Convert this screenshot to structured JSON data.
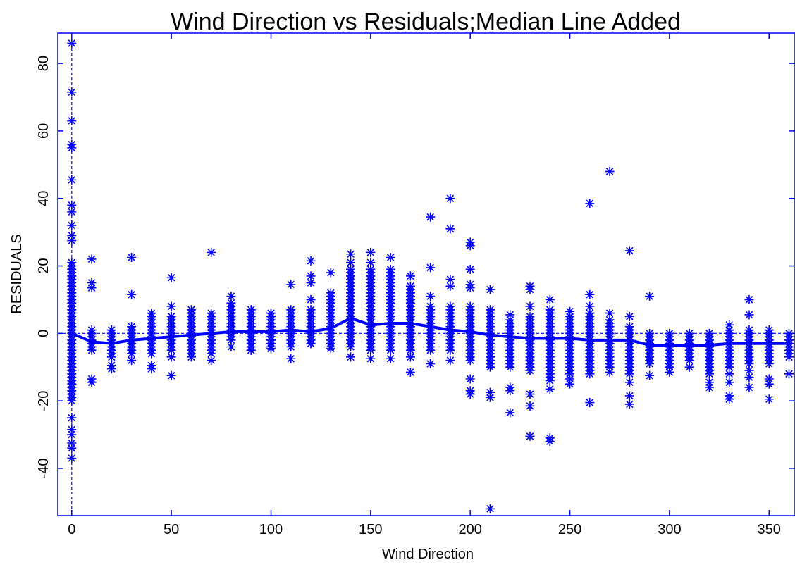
{
  "chart_data": {
    "type": "scatter",
    "title": "Wind Direction vs Residuals;Median Line Added",
    "xlabel": "Wind Direction",
    "ylabel": "RESIDUALS",
    "xlim": [
      -7,
      363
    ],
    "ylim": [
      -54,
      89
    ],
    "xticks": [
      0,
      50,
      100,
      150,
      200,
      250,
      300,
      350
    ],
    "yticks": [
      -40,
      -20,
      0,
      20,
      40,
      60,
      80
    ],
    "xtick_labels": [
      "0",
      "50",
      "100",
      "150",
      "200",
      "250",
      "300",
      "350"
    ],
    "ytick_labels": [
      "-40",
      "-20",
      "0",
      "20",
      "40",
      "60",
      "80"
    ],
    "grid": false,
    "reference_lines": {
      "horizontal_y": 0,
      "vertical_x": 0
    },
    "marker": "asterisk",
    "color": "#0000ff",
    "series": [
      {
        "type": "scatter",
        "points": [
          [
            0,
            86
          ],
          [
            0,
            71.5
          ],
          [
            0,
            63
          ],
          [
            0,
            56
          ],
          [
            0,
            55
          ],
          [
            0,
            45.5
          ],
          [
            0,
            38
          ],
          [
            0,
            36
          ],
          [
            0,
            32
          ],
          [
            0,
            29
          ],
          [
            0,
            27.5
          ],
          [
            0,
            -25
          ],
          [
            0,
            -28.5
          ],
          [
            0,
            -30
          ],
          [
            0,
            -32.5
          ],
          [
            0,
            -34
          ],
          [
            0,
            -37
          ],
          [
            10,
            22
          ],
          [
            10,
            15
          ],
          [
            10,
            13.5
          ],
          [
            10,
            -13.5
          ],
          [
            10,
            -14.5
          ],
          [
            20,
            -9.5
          ],
          [
            20,
            -10.5
          ],
          [
            30,
            22.5
          ],
          [
            30,
            11.5
          ],
          [
            30,
            -8
          ],
          [
            40,
            -9.5
          ],
          [
            40,
            -10.5
          ],
          [
            50,
            16.5
          ],
          [
            50,
            8
          ],
          [
            50,
            -7
          ],
          [
            50,
            -12.5
          ],
          [
            60,
            -7
          ],
          [
            70,
            24
          ],
          [
            70,
            -8
          ],
          [
            80,
            11
          ],
          [
            80,
            -4
          ],
          [
            90,
            -5
          ],
          [
            100,
            -4.5
          ],
          [
            110,
            14.5
          ],
          [
            110,
            -7.5
          ],
          [
            120,
            21.5
          ],
          [
            120,
            17
          ],
          [
            120,
            15
          ],
          [
            120,
            10
          ],
          [
            120,
            -3
          ],
          [
            130,
            18
          ],
          [
            130,
            -4.5
          ],
          [
            140,
            23.5
          ],
          [
            140,
            21
          ],
          [
            140,
            -7
          ],
          [
            150,
            24
          ],
          [
            150,
            21
          ],
          [
            150,
            -5
          ],
          [
            150,
            -7.5
          ],
          [
            160,
            22.5
          ],
          [
            160,
            -7.5
          ],
          [
            170,
            17
          ],
          [
            170,
            -7
          ],
          [
            170,
            -11.5
          ],
          [
            180,
            34.5
          ],
          [
            180,
            19.5
          ],
          [
            180,
            11
          ],
          [
            180,
            -9
          ],
          [
            190,
            40
          ],
          [
            190,
            31
          ],
          [
            190,
            16
          ],
          [
            190,
            14
          ],
          [
            190,
            -8
          ],
          [
            200,
            27
          ],
          [
            200,
            26
          ],
          [
            200,
            19
          ],
          [
            200,
            14.5
          ],
          [
            200,
            13.5
          ],
          [
            200,
            -13.5
          ],
          [
            200,
            -17
          ],
          [
            200,
            -18
          ],
          [
            210,
            13
          ],
          [
            210,
            -9
          ],
          [
            210,
            -10
          ],
          [
            210,
            -17.5
          ],
          [
            210,
            -19
          ],
          [
            210,
            -52
          ],
          [
            220,
            5.5
          ],
          [
            220,
            -10
          ],
          [
            220,
            -16
          ],
          [
            220,
            -17
          ],
          [
            220,
            -23.5
          ],
          [
            230,
            14
          ],
          [
            230,
            13
          ],
          [
            230,
            8
          ],
          [
            230,
            -18
          ],
          [
            230,
            -21.5
          ],
          [
            230,
            -30.5
          ],
          [
            240,
            10
          ],
          [
            240,
            -16.5
          ],
          [
            240,
            -31
          ],
          [
            240,
            -32
          ],
          [
            250,
            6.5
          ],
          [
            250,
            -13.5
          ],
          [
            250,
            -15
          ],
          [
            260,
            38.5
          ],
          [
            260,
            11.5
          ],
          [
            260,
            8
          ],
          [
            260,
            -12
          ],
          [
            260,
            -20.5
          ],
          [
            270,
            48
          ],
          [
            270,
            6
          ],
          [
            270,
            -11.5
          ],
          [
            280,
            24.5
          ],
          [
            280,
            5
          ],
          [
            280,
            -14.5
          ],
          [
            280,
            -18.5
          ],
          [
            280,
            -21
          ],
          [
            290,
            11
          ],
          [
            290,
            -12.5
          ],
          [
            300,
            -11.5
          ],
          [
            310,
            -10
          ],
          [
            320,
            -14.5
          ],
          [
            320,
            -16
          ],
          [
            330,
            2.5
          ],
          [
            330,
            -12
          ],
          [
            330,
            -14.5
          ],
          [
            330,
            -18.5
          ],
          [
            330,
            -19.5
          ],
          [
            340,
            10
          ],
          [
            340,
            5.5
          ],
          [
            340,
            -11
          ],
          [
            340,
            -13
          ],
          [
            340,
            -16
          ],
          [
            350,
            -13.5
          ],
          [
            350,
            -15
          ],
          [
            350,
            -19.5
          ],
          [
            360,
            -12
          ]
        ],
        "bands": [
          {
            "x": 0,
            "min": -20,
            "max": 21
          },
          {
            "x": 10,
            "min": -5,
            "max": 1
          },
          {
            "x": 20,
            "min": -7,
            "max": 1
          },
          {
            "x": 30,
            "min": -6,
            "max": 2
          },
          {
            "x": 40,
            "min": -6,
            "max": 6
          },
          {
            "x": 50,
            "min": -5,
            "max": 5
          },
          {
            "x": 60,
            "min": -6,
            "max": 7
          },
          {
            "x": 70,
            "min": -6,
            "max": 6
          },
          {
            "x": 80,
            "min": -2,
            "max": 9
          },
          {
            "x": 90,
            "min": -5,
            "max": 7
          },
          {
            "x": 100,
            "min": -4,
            "max": 6
          },
          {
            "x": 110,
            "min": -4,
            "max": 7
          },
          {
            "x": 120,
            "min": -3,
            "max": 7
          },
          {
            "x": 130,
            "min": -4,
            "max": 12
          },
          {
            "x": 140,
            "min": -4,
            "max": 19
          },
          {
            "x": 150,
            "min": -4,
            "max": 19
          },
          {
            "x": 160,
            "min": -5,
            "max": 19
          },
          {
            "x": 170,
            "min": -5,
            "max": 14
          },
          {
            "x": 180,
            "min": -5,
            "max": 8
          },
          {
            "x": 190,
            "min": -5,
            "max": 8
          },
          {
            "x": 200,
            "min": -8,
            "max": 8
          },
          {
            "x": 210,
            "min": -8,
            "max": 7
          },
          {
            "x": 220,
            "min": -9,
            "max": 4
          },
          {
            "x": 230,
            "min": -11,
            "max": 5
          },
          {
            "x": 240,
            "min": -14,
            "max": 7
          },
          {
            "x": 250,
            "min": -12,
            "max": 5
          },
          {
            "x": 260,
            "min": -11,
            "max": 6
          },
          {
            "x": 270,
            "min": -10,
            "max": 4
          },
          {
            "x": 280,
            "min": -12,
            "max": 2
          },
          {
            "x": 290,
            "min": -9,
            "max": 0
          },
          {
            "x": 300,
            "min": -10,
            "max": 0
          },
          {
            "x": 310,
            "min": -8,
            "max": 0
          },
          {
            "x": 320,
            "min": -12,
            "max": 0
          },
          {
            "x": 330,
            "min": -10,
            "max": 1
          },
          {
            "x": 340,
            "min": -9,
            "max": 1
          },
          {
            "x": 350,
            "min": -9,
            "max": 1
          },
          {
            "x": 360,
            "min": -7,
            "max": 0
          }
        ]
      },
      {
        "type": "line",
        "x": [
          0,
          10,
          20,
          30,
          40,
          50,
          60,
          70,
          80,
          90,
          100,
          110,
          120,
          130,
          140,
          150,
          160,
          170,
          180,
          190,
          200,
          210,
          220,
          230,
          240,
          250,
          260,
          270,
          280,
          290,
          300,
          310,
          320,
          330,
          340,
          350,
          360
        ],
        "y": [
          0,
          -2.5,
          -3,
          -2,
          -1.5,
          -1,
          -0.5,
          0,
          0.5,
          0.5,
          0.5,
          1,
          0.5,
          1.5,
          4.5,
          2.5,
          3,
          3,
          2,
          1,
          0.5,
          -0.5,
          -1,
          -1.5,
          -1.5,
          -1.5,
          -2,
          -2,
          -2,
          -3.5,
          -3.5,
          -3.5,
          -3.5,
          -3,
          -3,
          -3,
          -3
        ]
      }
    ]
  }
}
